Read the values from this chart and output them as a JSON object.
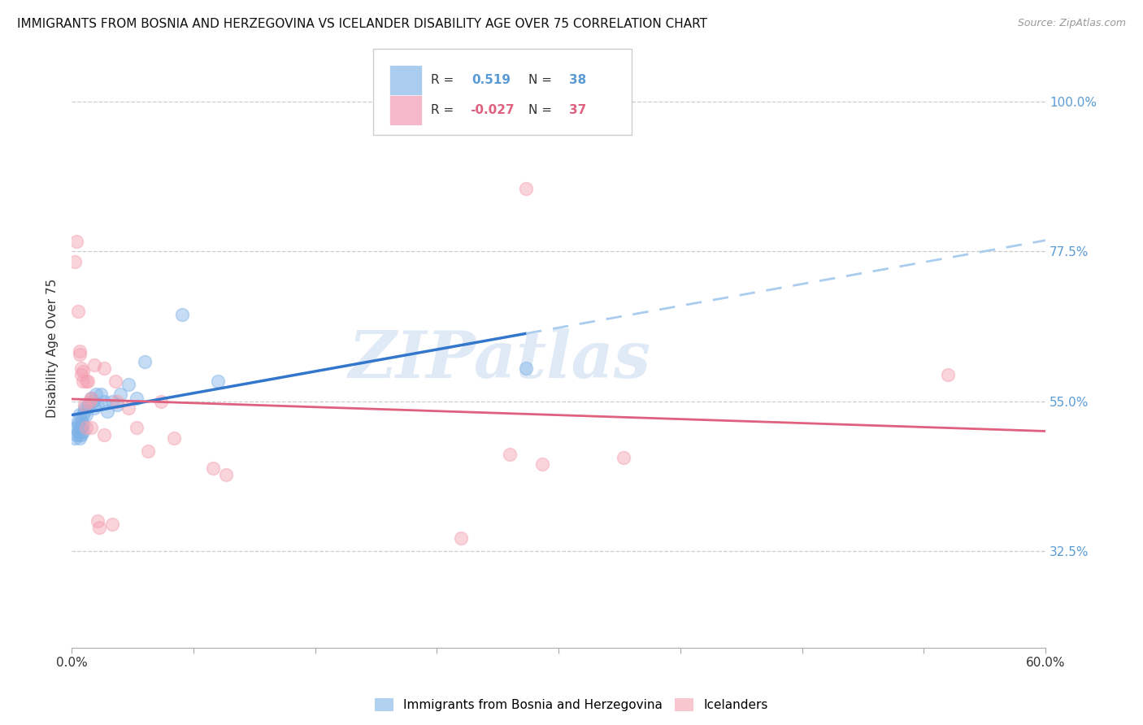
{
  "title": "IMMIGRANTS FROM BOSNIA AND HERZEGOVINA VS ICELANDER DISABILITY AGE OVER 75 CORRELATION CHART",
  "source": "Source: ZipAtlas.com",
  "ylabel": "Disability Age Over 75",
  "ytick_labels": [
    "100.0%",
    "77.5%",
    "55.0%",
    "32.5%"
  ],
  "ytick_positions": [
    1.0,
    0.775,
    0.55,
    0.325
  ],
  "xmin": 0.0,
  "xmax": 0.6,
  "ymin": 0.18,
  "ymax": 1.08,
  "legend_label1": "Immigrants from Bosnia and Herzegovina",
  "legend_label2": "Icelanders",
  "blue_color": "#7fb3e8",
  "pink_color": "#f4a0b0",
  "blue_line_color": "#3377cc",
  "pink_line_color": "#e06080",
  "blue_scatter": [
    [
      0.002,
      0.495
    ],
    [
      0.003,
      0.51
    ],
    [
      0.003,
      0.5
    ],
    [
      0.004,
      0.52
    ],
    [
      0.004,
      0.505
    ],
    [
      0.004,
      0.515
    ],
    [
      0.005,
      0.51
    ],
    [
      0.005,
      0.53
    ],
    [
      0.005,
      0.495
    ],
    [
      0.005,
      0.5
    ],
    [
      0.006,
      0.51
    ],
    [
      0.006,
      0.5
    ],
    [
      0.006,
      0.52
    ],
    [
      0.007,
      0.515
    ],
    [
      0.007,
      0.505
    ],
    [
      0.007,
      0.53
    ],
    [
      0.008,
      0.535
    ],
    [
      0.008,
      0.54
    ],
    [
      0.009,
      0.53
    ],
    [
      0.01,
      0.545
    ],
    [
      0.011,
      0.545
    ],
    [
      0.012,
      0.555
    ],
    [
      0.013,
      0.55
    ],
    [
      0.014,
      0.54
    ],
    [
      0.015,
      0.56
    ],
    [
      0.016,
      0.545
    ],
    [
      0.018,
      0.56
    ],
    [
      0.02,
      0.55
    ],
    [
      0.022,
      0.535
    ],
    [
      0.025,
      0.55
    ],
    [
      0.028,
      0.545
    ],
    [
      0.03,
      0.56
    ],
    [
      0.035,
      0.575
    ],
    [
      0.04,
      0.555
    ],
    [
      0.045,
      0.61
    ],
    [
      0.068,
      0.68
    ],
    [
      0.09,
      0.58
    ],
    [
      0.28,
      0.6
    ]
  ],
  "pink_scatter": [
    [
      0.002,
      0.76
    ],
    [
      0.003,
      0.79
    ],
    [
      0.004,
      0.685
    ],
    [
      0.005,
      0.625
    ],
    [
      0.005,
      0.62
    ],
    [
      0.006,
      0.6
    ],
    [
      0.006,
      0.59
    ],
    [
      0.007,
      0.595
    ],
    [
      0.007,
      0.58
    ],
    [
      0.008,
      0.545
    ],
    [
      0.009,
      0.58
    ],
    [
      0.009,
      0.51
    ],
    [
      0.01,
      0.58
    ],
    [
      0.011,
      0.55
    ],
    [
      0.012,
      0.555
    ],
    [
      0.012,
      0.51
    ],
    [
      0.014,
      0.605
    ],
    [
      0.016,
      0.37
    ],
    [
      0.017,
      0.36
    ],
    [
      0.02,
      0.6
    ],
    [
      0.02,
      0.5
    ],
    [
      0.025,
      0.365
    ],
    [
      0.027,
      0.58
    ],
    [
      0.028,
      0.55
    ],
    [
      0.035,
      0.54
    ],
    [
      0.04,
      0.51
    ],
    [
      0.047,
      0.475
    ],
    [
      0.055,
      0.55
    ],
    [
      0.063,
      0.495
    ],
    [
      0.087,
      0.45
    ],
    [
      0.095,
      0.44
    ],
    [
      0.24,
      0.345
    ],
    [
      0.27,
      0.47
    ],
    [
      0.29,
      0.455
    ],
    [
      0.34,
      0.465
    ],
    [
      0.54,
      0.59
    ],
    [
      0.28,
      0.87
    ]
  ],
  "watermark": "ZIPatlas",
  "axis_color": "#5b9bd5",
  "xtick_positions": [
    0.0,
    0.075,
    0.15,
    0.225,
    0.3,
    0.375,
    0.45,
    0.525,
    0.6
  ]
}
